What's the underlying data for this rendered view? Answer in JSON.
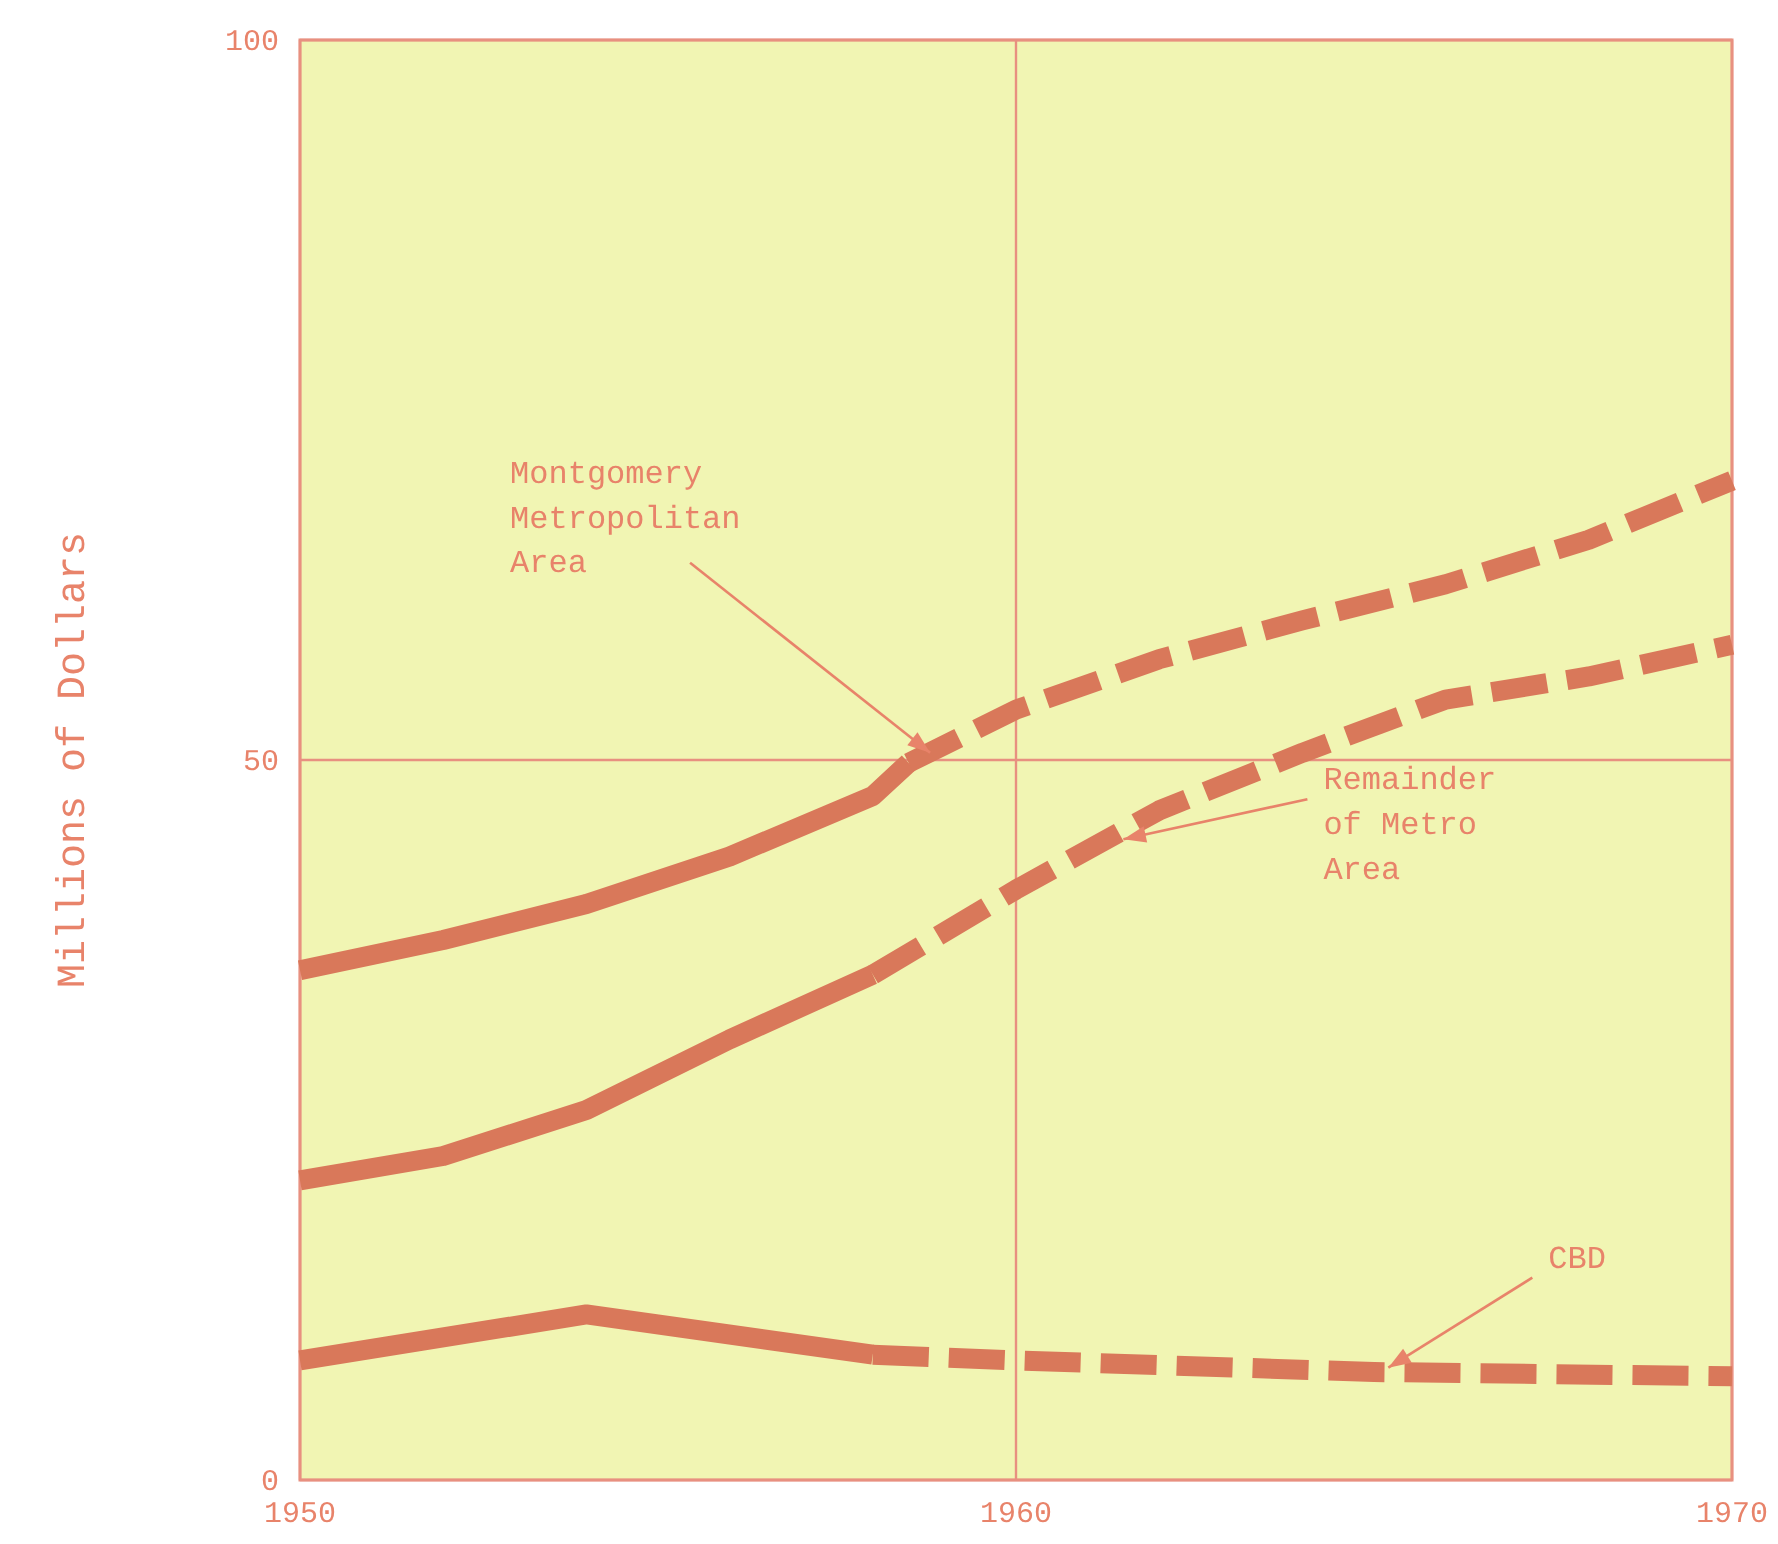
{
  "chart_data": {
    "type": "line",
    "ylabel": "Millions of Dollars",
    "xlim": [
      1950,
      1970
    ],
    "xticks": [
      1950,
      1960,
      1970
    ],
    "ylim": [
      0,
      100
    ],
    "yticks": [
      0,
      50,
      100
    ],
    "grid": true,
    "series": [
      {
        "color": "#d9785a",
        "line_style": "solid",
        "x": [
          1950,
          1952,
          1954,
          1956,
          1958,
          1958.5
        ],
        "values": [
          35.4,
          37.5,
          40,
          43.3,
          47.5,
          49.8
        ]
      },
      {
        "color": "#d9785a",
        "line_style": "dashed",
        "x": [
          1958.5,
          1960,
          1962,
          1964,
          1966,
          1968,
          1970
        ],
        "values": [
          49.8,
          53.5,
          57,
          59.7,
          62.2,
          65.3,
          69.4
        ]
      },
      {
        "color": "#d9785a",
        "line_style": "solid",
        "x": [
          1950,
          1952,
          1954,
          1956,
          1958
        ],
        "values": [
          20.8,
          22.5,
          25.7,
          30.6,
          35.1
        ]
      },
      {
        "color": "#d9785a",
        "line_style": "dashed",
        "x": [
          1958,
          1960,
          1962,
          1964,
          1966,
          1968,
          1970
        ],
        "values": [
          35.1,
          41,
          46.5,
          50.5,
          54.2,
          55.8,
          58
        ]
      },
      {
        "color": "#d9785a",
        "line_style": "solid",
        "x": [
          1950,
          1954,
          1958
        ],
        "values": [
          8.3,
          11.5,
          8.7
        ]
      },
      {
        "color": "#d9785a",
        "line_style": "dashed",
        "x": [
          1958,
          1960,
          1965,
          1970
        ],
        "values": [
          8.7,
          8.3,
          7.5,
          7.2
        ]
      }
    ],
    "annotations": [
      {
        "text": "Montgomery\nMetropolitan\nArea",
        "x": 1958.8,
        "y": 50.5
      },
      {
        "text": "Remainder\nof Metro\nArea",
        "x": 1961.5,
        "y": 44.5
      },
      {
        "text": "CBD",
        "x": 1965.2,
        "y": 7.8
      }
    ]
  }
}
